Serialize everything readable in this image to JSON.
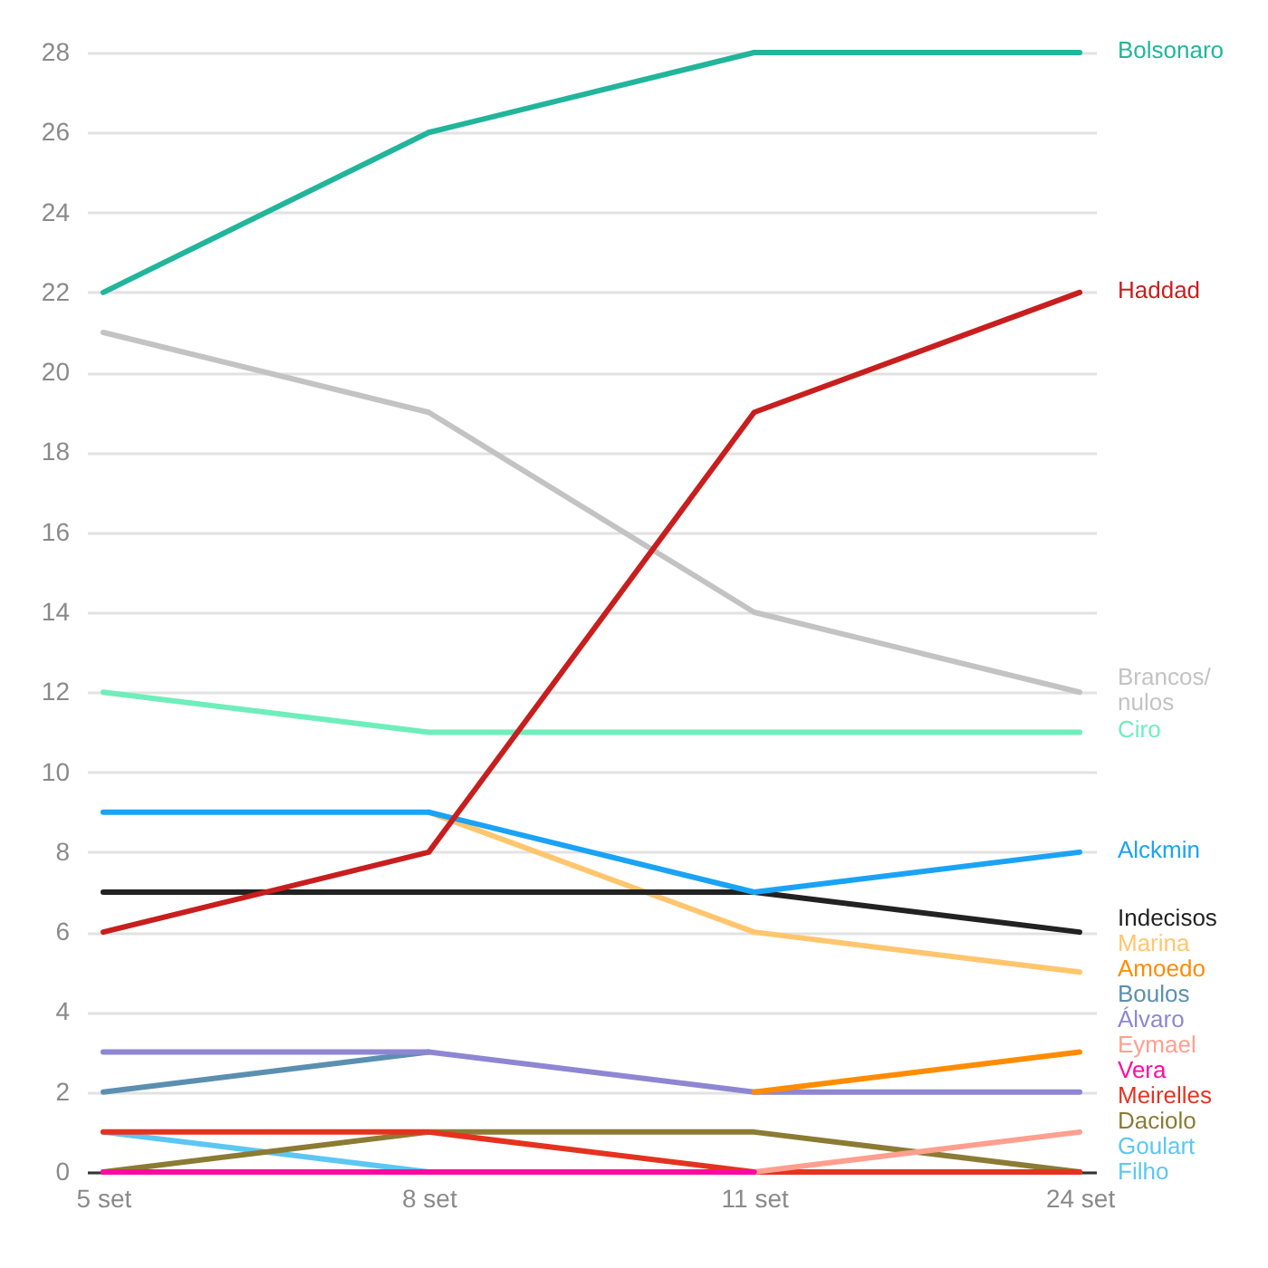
{
  "chart_data": {
    "type": "line",
    "categories": [
      "5 set",
      "8 set",
      "11 set",
      "24 set"
    ],
    "ylim": [
      0,
      28
    ],
    "yticks": [
      0,
      2,
      4,
      6,
      8,
      10,
      12,
      14,
      16,
      18,
      20,
      22,
      24,
      26,
      28
    ],
    "grid": "y",
    "series": [
      {
        "name": "Bolsonaro",
        "color": "#21b59b",
        "values": [
          22,
          26,
          28,
          28
        ]
      },
      {
        "name": "Haddad",
        "color": "#c81e1e",
        "values": [
          6,
          8,
          19,
          22
        ]
      },
      {
        "name": "Brancos/nulos",
        "color": "#c3c3c3",
        "values": [
          21,
          19,
          14,
          12
        ]
      },
      {
        "name": "Ciro",
        "color": "#6eeebb",
        "values": [
          12,
          11,
          11,
          11
        ]
      },
      {
        "name": "Alckmin",
        "color": "#1aa3f5",
        "values": [
          9,
          9,
          7,
          8
        ]
      },
      {
        "name": "Indecisos",
        "color": "#222222",
        "values": [
          7,
          7,
          7,
          6
        ]
      },
      {
        "name": "Marina",
        "color": "#ffc66e",
        "values": [
          null,
          9,
          6,
          5
        ]
      },
      {
        "name": "Amoedo",
        "color": "#ff8c00",
        "values": [
          null,
          null,
          2,
          3
        ]
      },
      {
        "name": "Álvaro",
        "color": "#8d87d3",
        "values": [
          3,
          3,
          2,
          2
        ]
      },
      {
        "name": "Boulos",
        "color": "#5b8fb0",
        "values": [
          2,
          3,
          null,
          null
        ]
      },
      {
        "name": "Vera",
        "color": "#ff0aa0",
        "values": [
          0,
          0,
          0,
          null
        ]
      },
      {
        "name": "Eymael",
        "color": "#ff9f8f",
        "values": [
          null,
          null,
          0,
          1
        ]
      },
      {
        "name": "Meirelles",
        "color": "#e5321f",
        "values": [
          1,
          1,
          0,
          0
        ]
      },
      {
        "name": "Daciolo",
        "color": "#8b7b33",
        "values": [
          0,
          1,
          1,
          0
        ]
      },
      {
        "name": "Goulart Filho",
        "color": "#5bc7f2",
        "values": [
          1,
          0,
          null,
          null
        ]
      }
    ]
  }
}
